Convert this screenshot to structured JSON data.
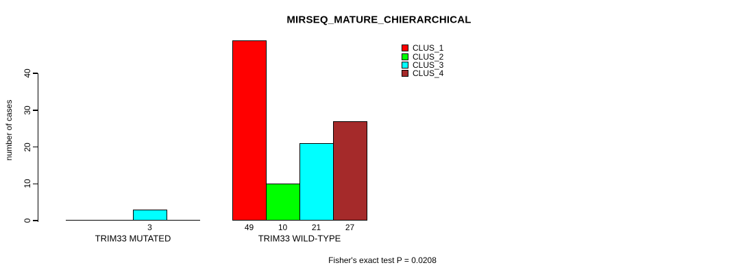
{
  "chart_data": {
    "type": "bar",
    "title": "MIRSEQ_MATURE_CHIERARCHICAL",
    "ylabel": "number of cases",
    "xlabel": "",
    "ylim": [
      0,
      49
    ],
    "yticks": [
      0,
      10,
      20,
      30,
      40
    ],
    "categories": [
      "TRIM33 MUTATED",
      "TRIM33 WILD-TYPE"
    ],
    "series": [
      {
        "name": "CLUS_1",
        "color": "#ff0000",
        "values": [
          0,
          49
        ]
      },
      {
        "name": "CLUS_2",
        "color": "#00ff00",
        "values": [
          0,
          10
        ]
      },
      {
        "name": "CLUS_3",
        "color": "#00ffff",
        "values": [
          3,
          21
        ]
      },
      {
        "name": "CLUS_4",
        "color": "#a52a2a",
        "values": [
          0,
          27
        ]
      }
    ],
    "value_labels_shown_for_nonzero_bars": true,
    "legend_position": "top-right",
    "legend_entries": [
      "CLUS_1",
      "CLUS_2",
      "CLUS_3",
      "CLUS_4"
    ],
    "grid": false,
    "annotation": "Fisher's exact test P = 0.0208",
    "colors": {
      "background": "#ffffff",
      "axis": "#000000",
      "text": "#000000",
      "bar_border": "#000000"
    }
  }
}
